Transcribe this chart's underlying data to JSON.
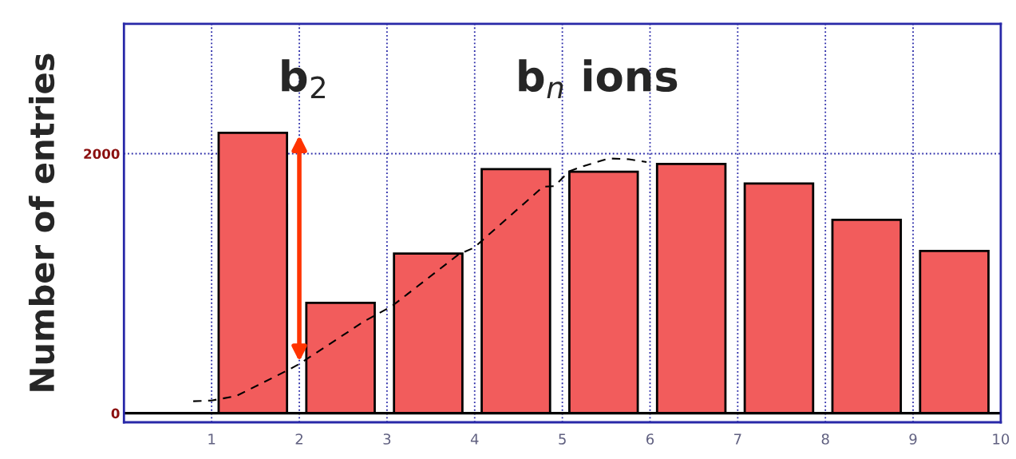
{
  "chart_data": {
    "type": "histogram",
    "ylabel": "Number of entries",
    "bins": [
      1,
      2,
      3,
      4,
      5,
      6,
      7,
      8,
      9,
      10
    ],
    "series": [
      {
        "color": "#f25c5c",
        "values": [
          2160,
          850,
          1230,
          1880,
          1860,
          1920,
          1770,
          1490,
          1250
        ]
      },
      {
        "type": "line",
        "color": "#000000",
        "line_style": "dashed",
        "marker": "none",
        "x": [
          0.79,
          1.0,
          1.28,
          1.87,
          2.0,
          2.74,
          3.05,
          3.82,
          3.99,
          4.78,
          4.91,
          5.08,
          5.26,
          5.53,
          5.76,
          5.96
        ],
        "values": [
          92,
          98,
          132,
          332,
          380,
          708,
          822,
          1225,
          1274,
          1745,
          1750,
          1865,
          1908,
          1963,
          1957,
          1935
        ]
      }
    ],
    "annotations": [
      "b$_{2}$",
      "b$_{n}$ ions"
    ],
    "ref_lines": [
      {
        "axis": "y",
        "value": 0,
        "color": "#000000"
      }
    ],
    "xlim": [
      0,
      10
    ],
    "xticks": [
      1,
      2,
      3,
      4,
      5,
      6,
      7,
      8,
      9,
      10
    ],
    "ylim": [
      -70,
      3000
    ],
    "yticks": [
      0,
      2000
    ],
    "grid": true
  }
}
